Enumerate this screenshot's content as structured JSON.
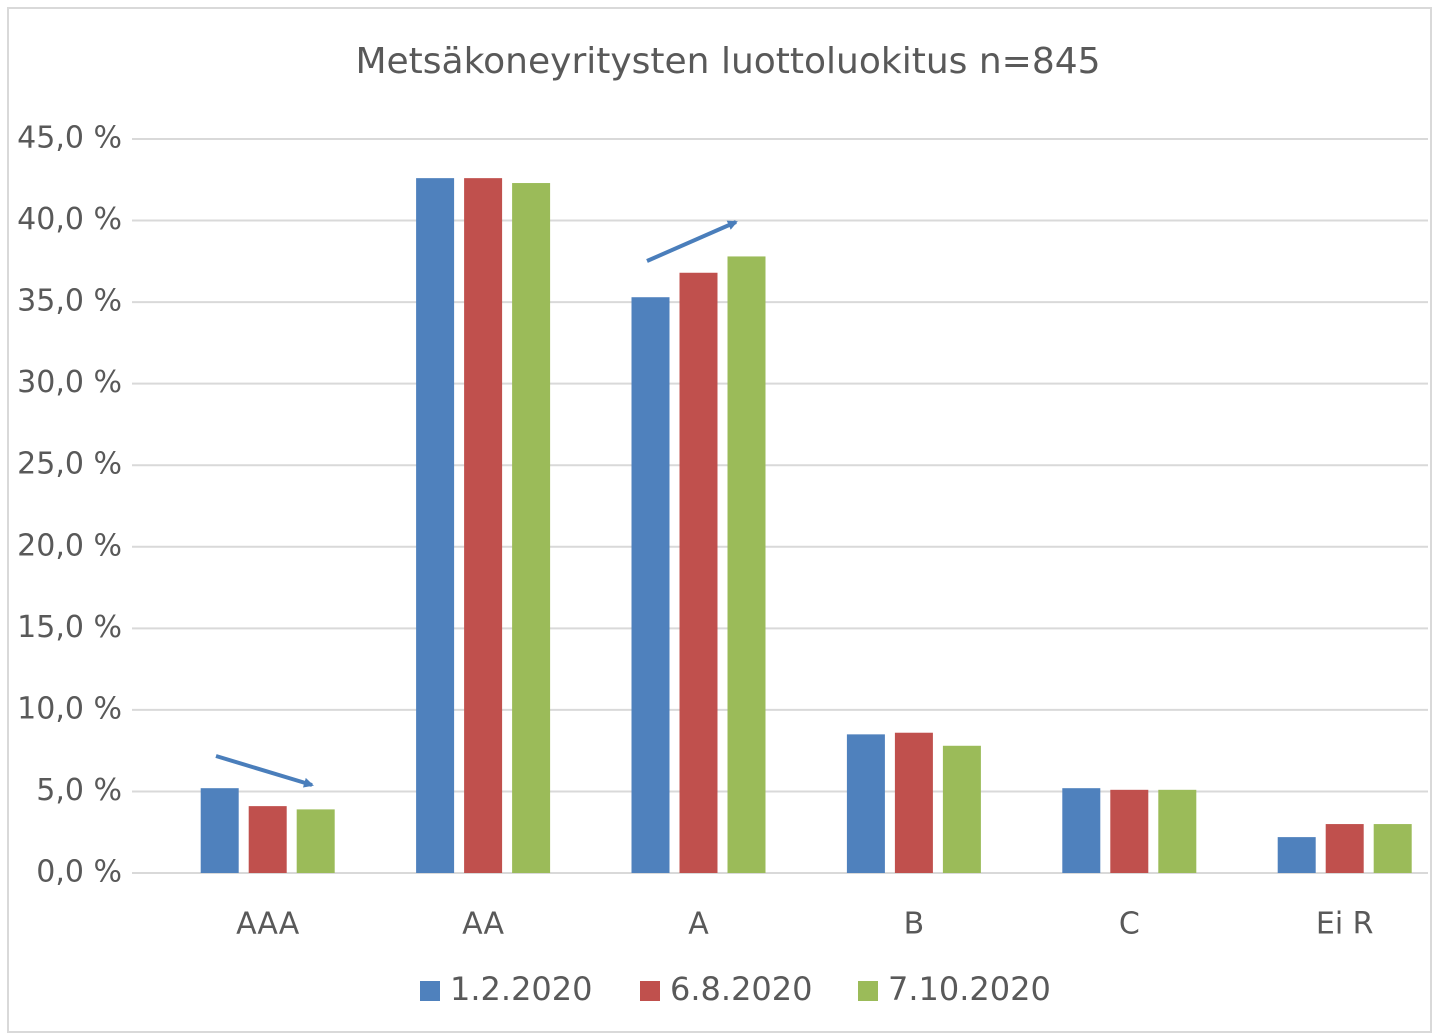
{
  "chart_data": {
    "type": "bar",
    "title": "Metsäkoneyritysten luottoluokitus n=845",
    "categories": [
      "AAA",
      "AA",
      "A",
      "B",
      "C",
      "Ei R"
    ],
    "series": [
      {
        "name": "1.2.2020",
        "color": "#4f81bd",
        "values": [
          5.2,
          42.6,
          35.3,
          8.5,
          5.2,
          2.2
        ]
      },
      {
        "name": "6.8.2020",
        "color": "#c0504d",
        "values": [
          4.1,
          42.6,
          36.8,
          8.6,
          5.1,
          3.0
        ]
      },
      {
        "name": "7.10.2020",
        "color": "#9bbb59",
        "values": [
          3.9,
          42.3,
          37.8,
          7.8,
          5.1,
          3.0
        ]
      }
    ],
    "ylim": [
      0,
      45
    ],
    "yticks": [
      {
        "value": 0,
        "label": "0,0 %"
      },
      {
        "value": 5,
        "label": "5,0 %"
      },
      {
        "value": 10,
        "label": "10,0 %"
      },
      {
        "value": 15,
        "label": "15,0 %"
      },
      {
        "value": 20,
        "label": "20,0 %"
      },
      {
        "value": 25,
        "label": "25,0 %"
      },
      {
        "value": 30,
        "label": "30,0 %"
      },
      {
        "value": 35,
        "label": "35,0 %"
      },
      {
        "value": 40,
        "label": "40,0 %"
      },
      {
        "value": 45,
        "label": "45,0 %"
      }
    ],
    "grid": true,
    "legend": "bottom"
  }
}
